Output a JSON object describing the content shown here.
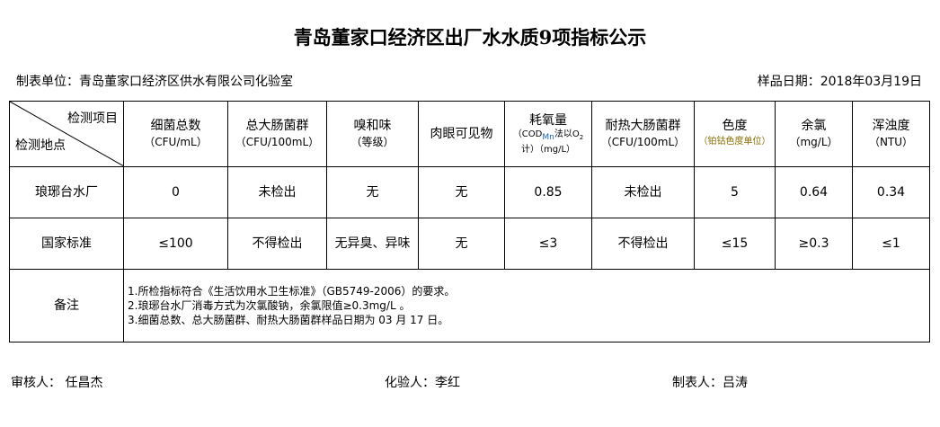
{
  "title": "青岛董家口经济区出厂水水质9项指标公示",
  "unit": "制表单位：青岛董家口经济区供水有限公司化验室",
  "date": "样品日期：2018年03月19日",
  "header": {
    "corner_top": "检测项目",
    "corner_bottom": "检测地点",
    "cols": [
      {
        "name": "细菌总数",
        "unit": "（CFU/mL）"
      },
      {
        "name": "总大肠菌群",
        "unit": "（CFU/100mL）"
      },
      {
        "name": "嗅和味",
        "unit": "（等级）"
      },
      {
        "name": "肉眼可见物",
        "unit": ""
      },
      {
        "name": "耗氧量",
        "unit": "（COD",
        "sub": "Mn",
        "unit2": "法以O",
        "sub2": "2",
        "unit3": "计）（mg/L）"
      },
      {
        "name": "耐热大肠菌群",
        "unit": "（CFU/100mL）"
      },
      {
        "name": "色度",
        "unit": "（铂钴色度单位）"
      },
      {
        "name": "余氯",
        "unit": "（mg/L）"
      },
      {
        "name": "浑浊度",
        "unit": "（NTU）"
      }
    ]
  },
  "rows": [
    {
      "label": "琅琊台水厂",
      "values": [
        "0",
        "未检出",
        "无",
        "无",
        "0.85",
        "未检出",
        "5",
        "0.64",
        "0.34"
      ]
    },
    {
      "label": "国家标准",
      "values": [
        "≤100",
        "不得检出",
        "无异臭、异味",
        "无",
        "≤3",
        "不得检出",
        "≤15",
        "≥0.3",
        "≤1"
      ]
    }
  ],
  "notes_label": "备注",
  "notes": [
    "1.所检指标符合《生活饮用水卫生标准》（GB5749-2006）的要求。",
    "2.琅琊台水厂消毒方式为次氯酸钠，余氯限值≥0.3mg/L 。",
    "3.细菌总数、总大肠菌群、耐热大肠菌群样品日期为 03 月 17 日。"
  ],
  "footer": {
    "reviewer": "审核人：  任昌杰",
    "tester": "化验人：李红",
    "maker": "制表人：吕涛"
  }
}
